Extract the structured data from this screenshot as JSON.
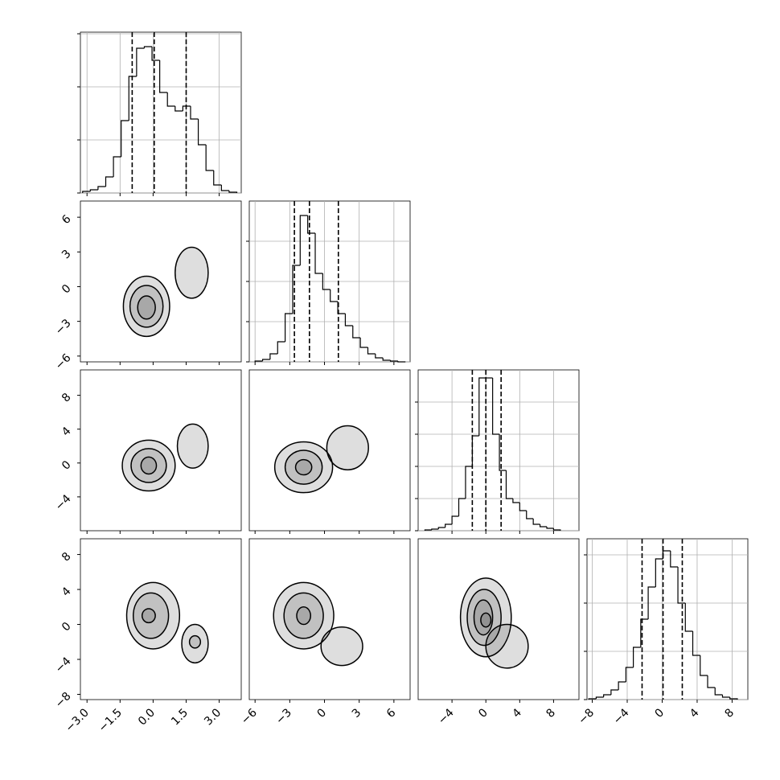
{
  "chart_data": {
    "type": "corner",
    "color": "#000000",
    "grid": true,
    "variables": [
      {
        "lim": [
          -3.3,
          4.0
        ],
        "ticks": [
          {
            "value": -3,
            "label": "−3.0"
          },
          {
            "value": -1.5,
            "label": "−1.5"
          },
          {
            "value": 0,
            "label": "0.0"
          },
          {
            "value": 1.5,
            "label": "1.5"
          },
          {
            "value": 3,
            "label": "3.0"
          }
        ],
        "quantiles": [
          -0.95,
          0.05,
          1.5
        ],
        "hist": {
          "bins": [
            -3.2,
            -2.85,
            -2.5,
            -2.15,
            -1.8,
            -1.45,
            -1.1,
            -0.75,
            -0.4,
            -0.05,
            0.3,
            0.65,
            1.0,
            1.35,
            1.7,
            2.05,
            2.4,
            2.75,
            3.1,
            3.45,
            3.8
          ],
          "counts": [
            2,
            4,
            8,
            20,
            45,
            90,
            145,
            180,
            182,
            165,
            125,
            108,
            102,
            108,
            92,
            60,
            28,
            10,
            3,
            1
          ],
          "ylim": [
            0,
            200
          ],
          "yticks": [
            0,
            66,
            132,
            198
          ]
        }
      },
      {
        "lim": [
          -6.5,
          7.4
        ],
        "ticks": [
          {
            "value": -6,
            "label": "−6"
          },
          {
            "value": -3,
            "label": "−3"
          },
          {
            "value": 0,
            "label": "0"
          },
          {
            "value": 3,
            "label": "3"
          },
          {
            "value": 6,
            "label": "6"
          }
        ],
        "quantiles": [
          -2.6,
          -1.3,
          1.2
        ],
        "hist": {
          "bins": [
            -6.0,
            -5.35,
            -4.7,
            -4.05,
            -3.4,
            -2.75,
            -2.1,
            -1.45,
            -0.8,
            -0.15,
            0.5,
            1.15,
            1.8,
            2.45,
            3.1,
            3.75,
            4.4,
            5.05,
            5.7,
            6.35,
            7.0
          ],
          "counts": [
            1,
            3,
            10,
            25,
            60,
            120,
            182,
            160,
            110,
            90,
            75,
            60,
            45,
            30,
            18,
            10,
            5,
            2,
            1,
            0
          ],
          "ylim": [
            0,
            200
          ],
          "yticks": [
            0,
            50,
            100,
            150
          ]
        }
      },
      {
        "lim": [
          -8,
          11
        ],
        "ticks": [
          {
            "value": -4,
            "label": "−4"
          },
          {
            "value": 0,
            "label": "0"
          },
          {
            "value": 4,
            "label": "4"
          },
          {
            "value": 8,
            "label": "8"
          }
        ],
        "quantiles": [
          -1.6,
          0,
          1.8
        ],
        "hist": {
          "bins": [
            -7.2,
            -6.4,
            -5.6,
            -4.8,
            -4.0,
            -3.2,
            -2.4,
            -1.6,
            -0.8,
            0,
            0.8,
            1.6,
            2.4,
            3.2,
            4.0,
            4.8,
            5.6,
            6.4,
            7.2,
            8.0,
            8.8
          ],
          "counts": [
            1,
            2,
            4,
            8,
            18,
            40,
            80,
            118,
            190,
            190,
            120,
            75,
            40,
            35,
            25,
            15,
            8,
            5,
            3,
            1
          ],
          "ylim": [
            0,
            200
          ],
          "yticks": [
            0,
            40,
            80,
            120,
            160
          ]
        }
      },
      {
        "lim": [
          -8.6,
          9.8
        ],
        "ticks": [
          {
            "value": -8,
            "label": "−8"
          },
          {
            "value": -4,
            "label": "−4"
          },
          {
            "value": 0,
            "label": "0"
          },
          {
            "value": 4,
            "label": "4"
          },
          {
            "value": 8,
            "label": "8"
          }
        ],
        "quantiles": [
          -2.3,
          0.1,
          2.3
        ],
        "hist": {
          "bins": [
            -8.4,
            -7.55,
            -6.7,
            -5.85,
            -5.0,
            -4.15,
            -3.3,
            -2.45,
            -1.6,
            -0.75,
            0.1,
            0.95,
            1.8,
            2.65,
            3.5,
            4.35,
            5.2,
            6.05,
            6.9,
            7.75,
            8.6
          ],
          "counts": [
            1,
            3,
            6,
            12,
            22,
            40,
            65,
            100,
            140,
            175,
            185,
            165,
            120,
            85,
            55,
            30,
            15,
            6,
            3,
            1
          ],
          "ylim": [
            0,
            200
          ],
          "yticks": [
            0,
            60,
            120,
            180
          ]
        }
      }
    ],
    "contours": [
      [
        [
          {
            "x": -0.3,
            "y": -1.7,
            "rx": 1.05,
            "ry": 2.6
          },
          {
            "x": -0.3,
            "y": -1.7,
            "rx": 0.75,
            "ry": 1.8
          },
          {
            "x": -0.3,
            "y": -1.8,
            "rx": 0.4,
            "ry": 1.0
          },
          {
            "x": 1.75,
            "y": 1.2,
            "rx": 0.75,
            "ry": 2.2
          }
        ]
      ],
      [
        [
          {
            "x": -0.2,
            "y": -0.3,
            "rx": 1.2,
            "ry": 3.0
          },
          {
            "x": -0.2,
            "y": -0.3,
            "rx": 0.8,
            "ry": 2.0
          },
          {
            "x": -0.2,
            "y": -0.3,
            "rx": 0.35,
            "ry": 1.0
          },
          {
            "x": 1.8,
            "y": 2.0,
            "rx": 0.7,
            "ry": 2.6
          }
        ],
        [
          {
            "x": -1.8,
            "y": -0.5,
            "rx": 2.5,
            "ry": 3.0
          },
          {
            "x": -1.8,
            "y": -0.5,
            "rx": 1.6,
            "ry": 2.0
          },
          {
            "x": -1.8,
            "y": -0.5,
            "rx": 0.7,
            "ry": 0.9
          },
          {
            "x": 2.0,
            "y": 1.8,
            "rx": 1.8,
            "ry": 2.6
          }
        ]
      ],
      [
        [
          {
            "x": 0,
            "y": 1,
            "rx": 1.2,
            "ry": 3.8
          },
          {
            "x": -0.1,
            "y": 1,
            "rx": 0.8,
            "ry": 2.6
          },
          {
            "x": -0.2,
            "y": 1,
            "rx": 0.3,
            "ry": 0.8
          },
          {
            "x": 1.9,
            "y": -2.2,
            "rx": 0.6,
            "ry": 2.2
          },
          {
            "x": 1.9,
            "y": -2,
            "rx": 0.25,
            "ry": 0.7
          }
        ],
        [
          {
            "x": -1.8,
            "y": 1,
            "rx": 2.6,
            "ry": 3.8
          },
          {
            "x": -1.8,
            "y": 1,
            "rx": 1.7,
            "ry": 2.6
          },
          {
            "x": -1.8,
            "y": 1,
            "rx": 0.6,
            "ry": 1.0
          },
          {
            "x": 1.5,
            "y": -2.5,
            "rx": 1.8,
            "ry": 2.2
          }
        ],
        [
          {
            "x": 0,
            "y": 0.8,
            "rx": 3,
            "ry": 4.5
          },
          {
            "x": -0.2,
            "y": 0.8,
            "rx": 2.0,
            "ry": 3.2
          },
          {
            "x": -0.3,
            "y": 0.8,
            "rx": 1.1,
            "ry": 2.0
          },
          {
            "x": 0,
            "y": 0.5,
            "rx": 0.6,
            "ry": 0.8
          },
          {
            "x": 2.5,
            "y": -2.5,
            "rx": 2.5,
            "ry": 2.5
          }
        ]
      ]
    ]
  }
}
